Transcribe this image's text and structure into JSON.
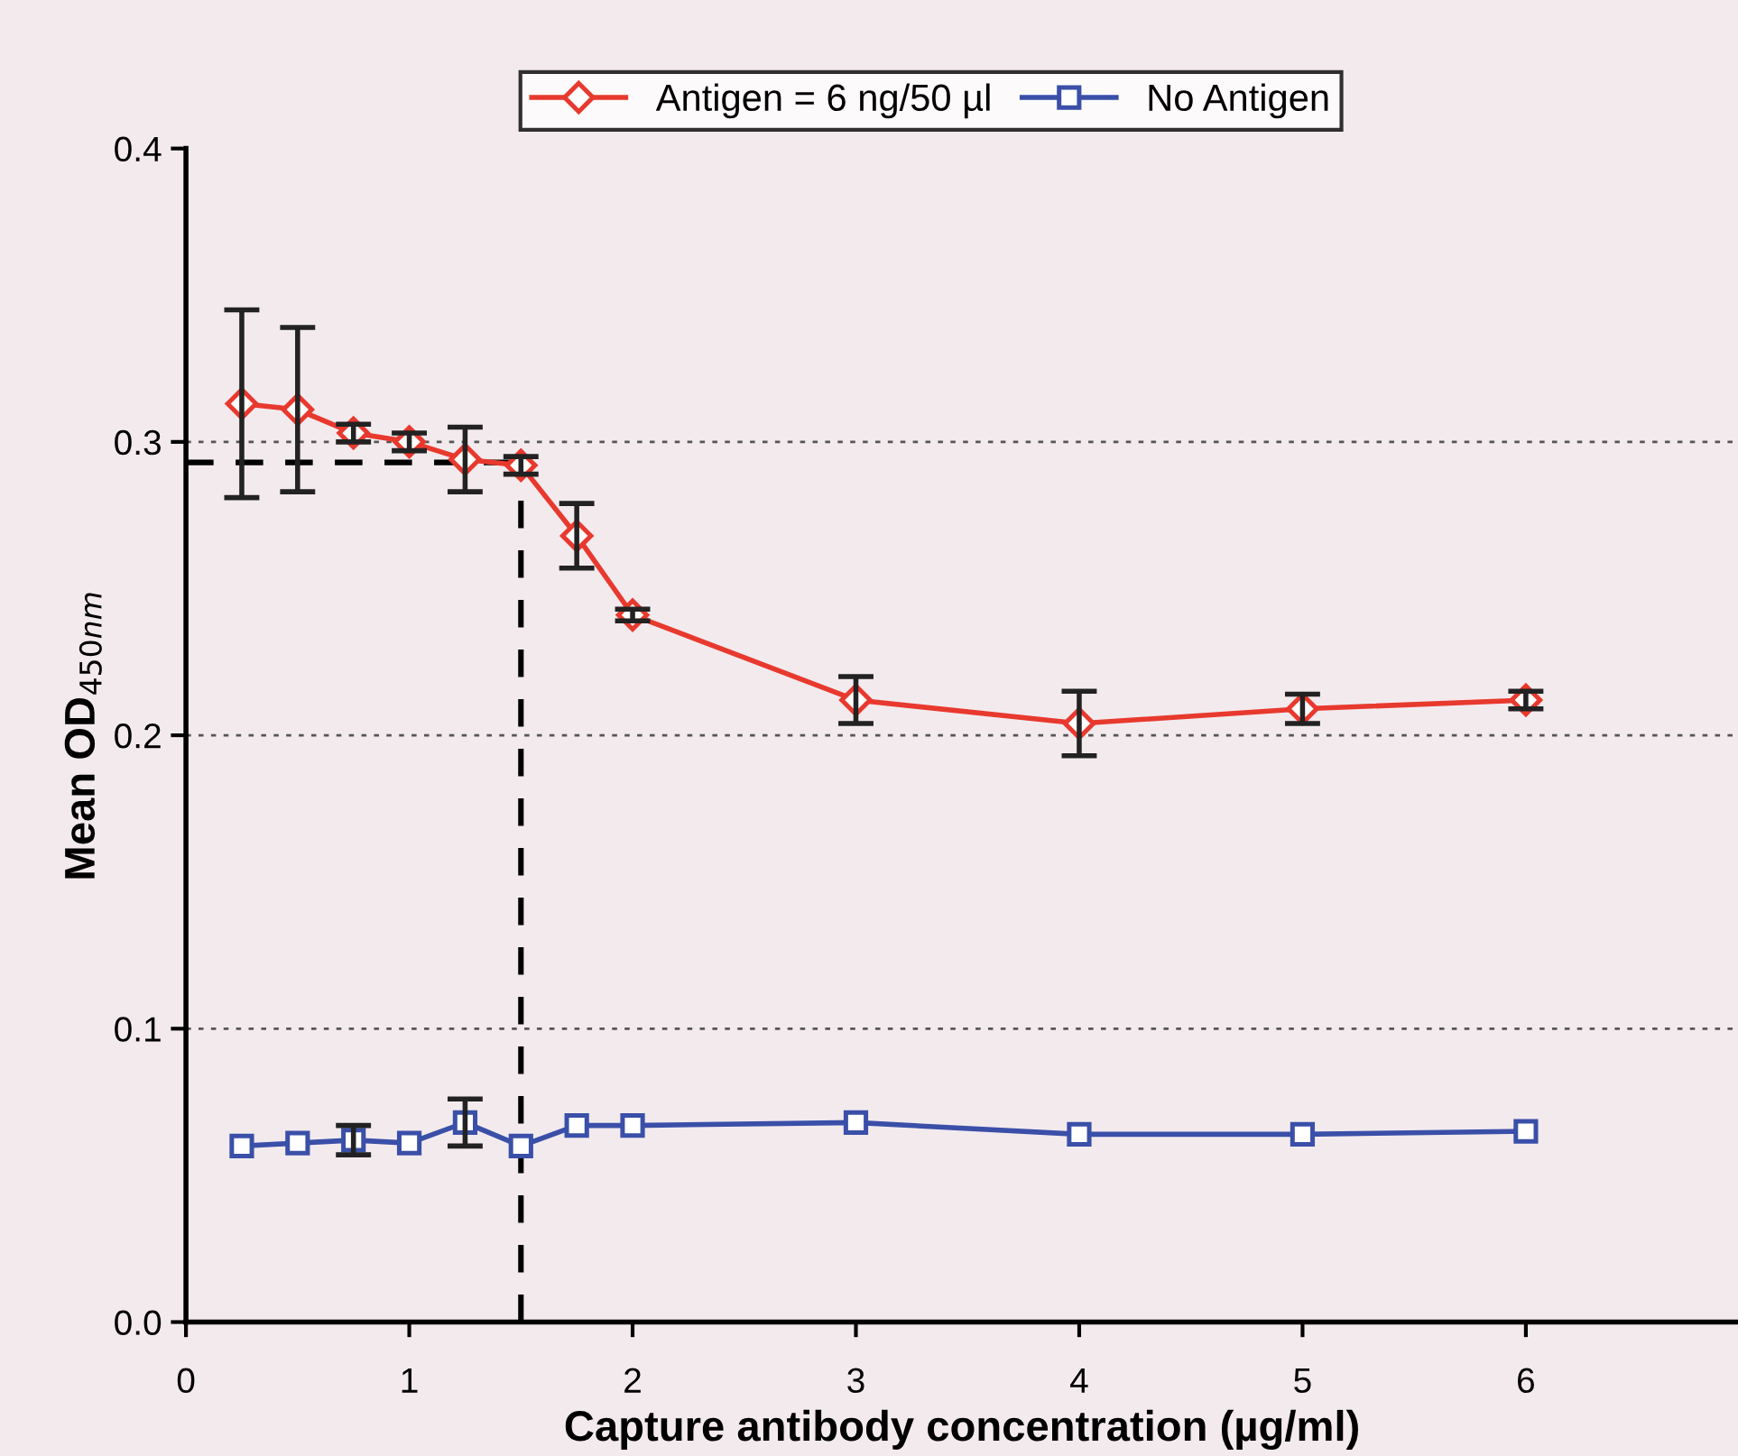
{
  "chart_data": {
    "type": "line",
    "xlabel": "Capture antibody concentration (µg/ml)",
    "ylabel": "Mean OD$_{450nm}$",
    "x": [
      0.25,
      0.5,
      0.75,
      1.0,
      1.25,
      1.5,
      1.75,
      2,
      3,
      4,
      5,
      6
    ],
    "series": [
      {
        "name": "Antigen = 6 ng/50 µl",
        "color": "#e8392e",
        "marker": "diamond",
        "values": [
          0.313,
          0.311,
          0.303,
          0.3,
          0.294,
          0.292,
          0.268,
          0.241,
          0.212,
          0.204,
          0.209,
          0.212
        ],
        "errors": [
          0.032,
          0.028,
          0.003,
          0.003,
          0.011,
          0.003,
          0.011,
          0.002,
          0.008,
          0.011,
          0.005,
          0.003
        ]
      },
      {
        "name": "No Antigen",
        "color": "#3a4fa8",
        "marker": "square",
        "values": [
          0.06,
          0.061,
          0.062,
          0.061,
          0.068,
          0.06,
          0.067,
          0.067,
          0.068,
          0.064,
          0.064,
          0.065
        ],
        "errors": [
          null,
          null,
          0.005,
          null,
          0.008,
          null,
          null,
          null,
          null,
          null,
          null,
          null
        ]
      }
    ],
    "ref_lines": [
      {
        "axis": "y",
        "value": 0.1,
        "color": "#555555",
        "line_style": "dotted"
      },
      {
        "axis": "y",
        "value": 0.2,
        "color": "#555555",
        "line_style": "dotted"
      },
      {
        "axis": "y",
        "value": 0.3,
        "color": "#555555",
        "line_style": "dotted"
      },
      {
        "axis": "y",
        "value": 0.293,
        "color": "#000000",
        "line_style": "dashed"
      },
      {
        "axis": "x",
        "value": 1.5,
        "color": "#000000",
        "line_style": "dashed"
      }
    ],
    "xlim": [
      0,
      6.95
    ],
    "xticks": [
      0,
      1,
      2,
      3,
      4,
      5,
      6
    ],
    "ylim": [
      0,
      0.4
    ],
    "yticks": [
      {
        "value": 0,
        "label": "0.0"
      },
      0.1,
      0.2,
      0.3,
      0.4
    ],
    "legend": "top",
    "grid": false
  }
}
